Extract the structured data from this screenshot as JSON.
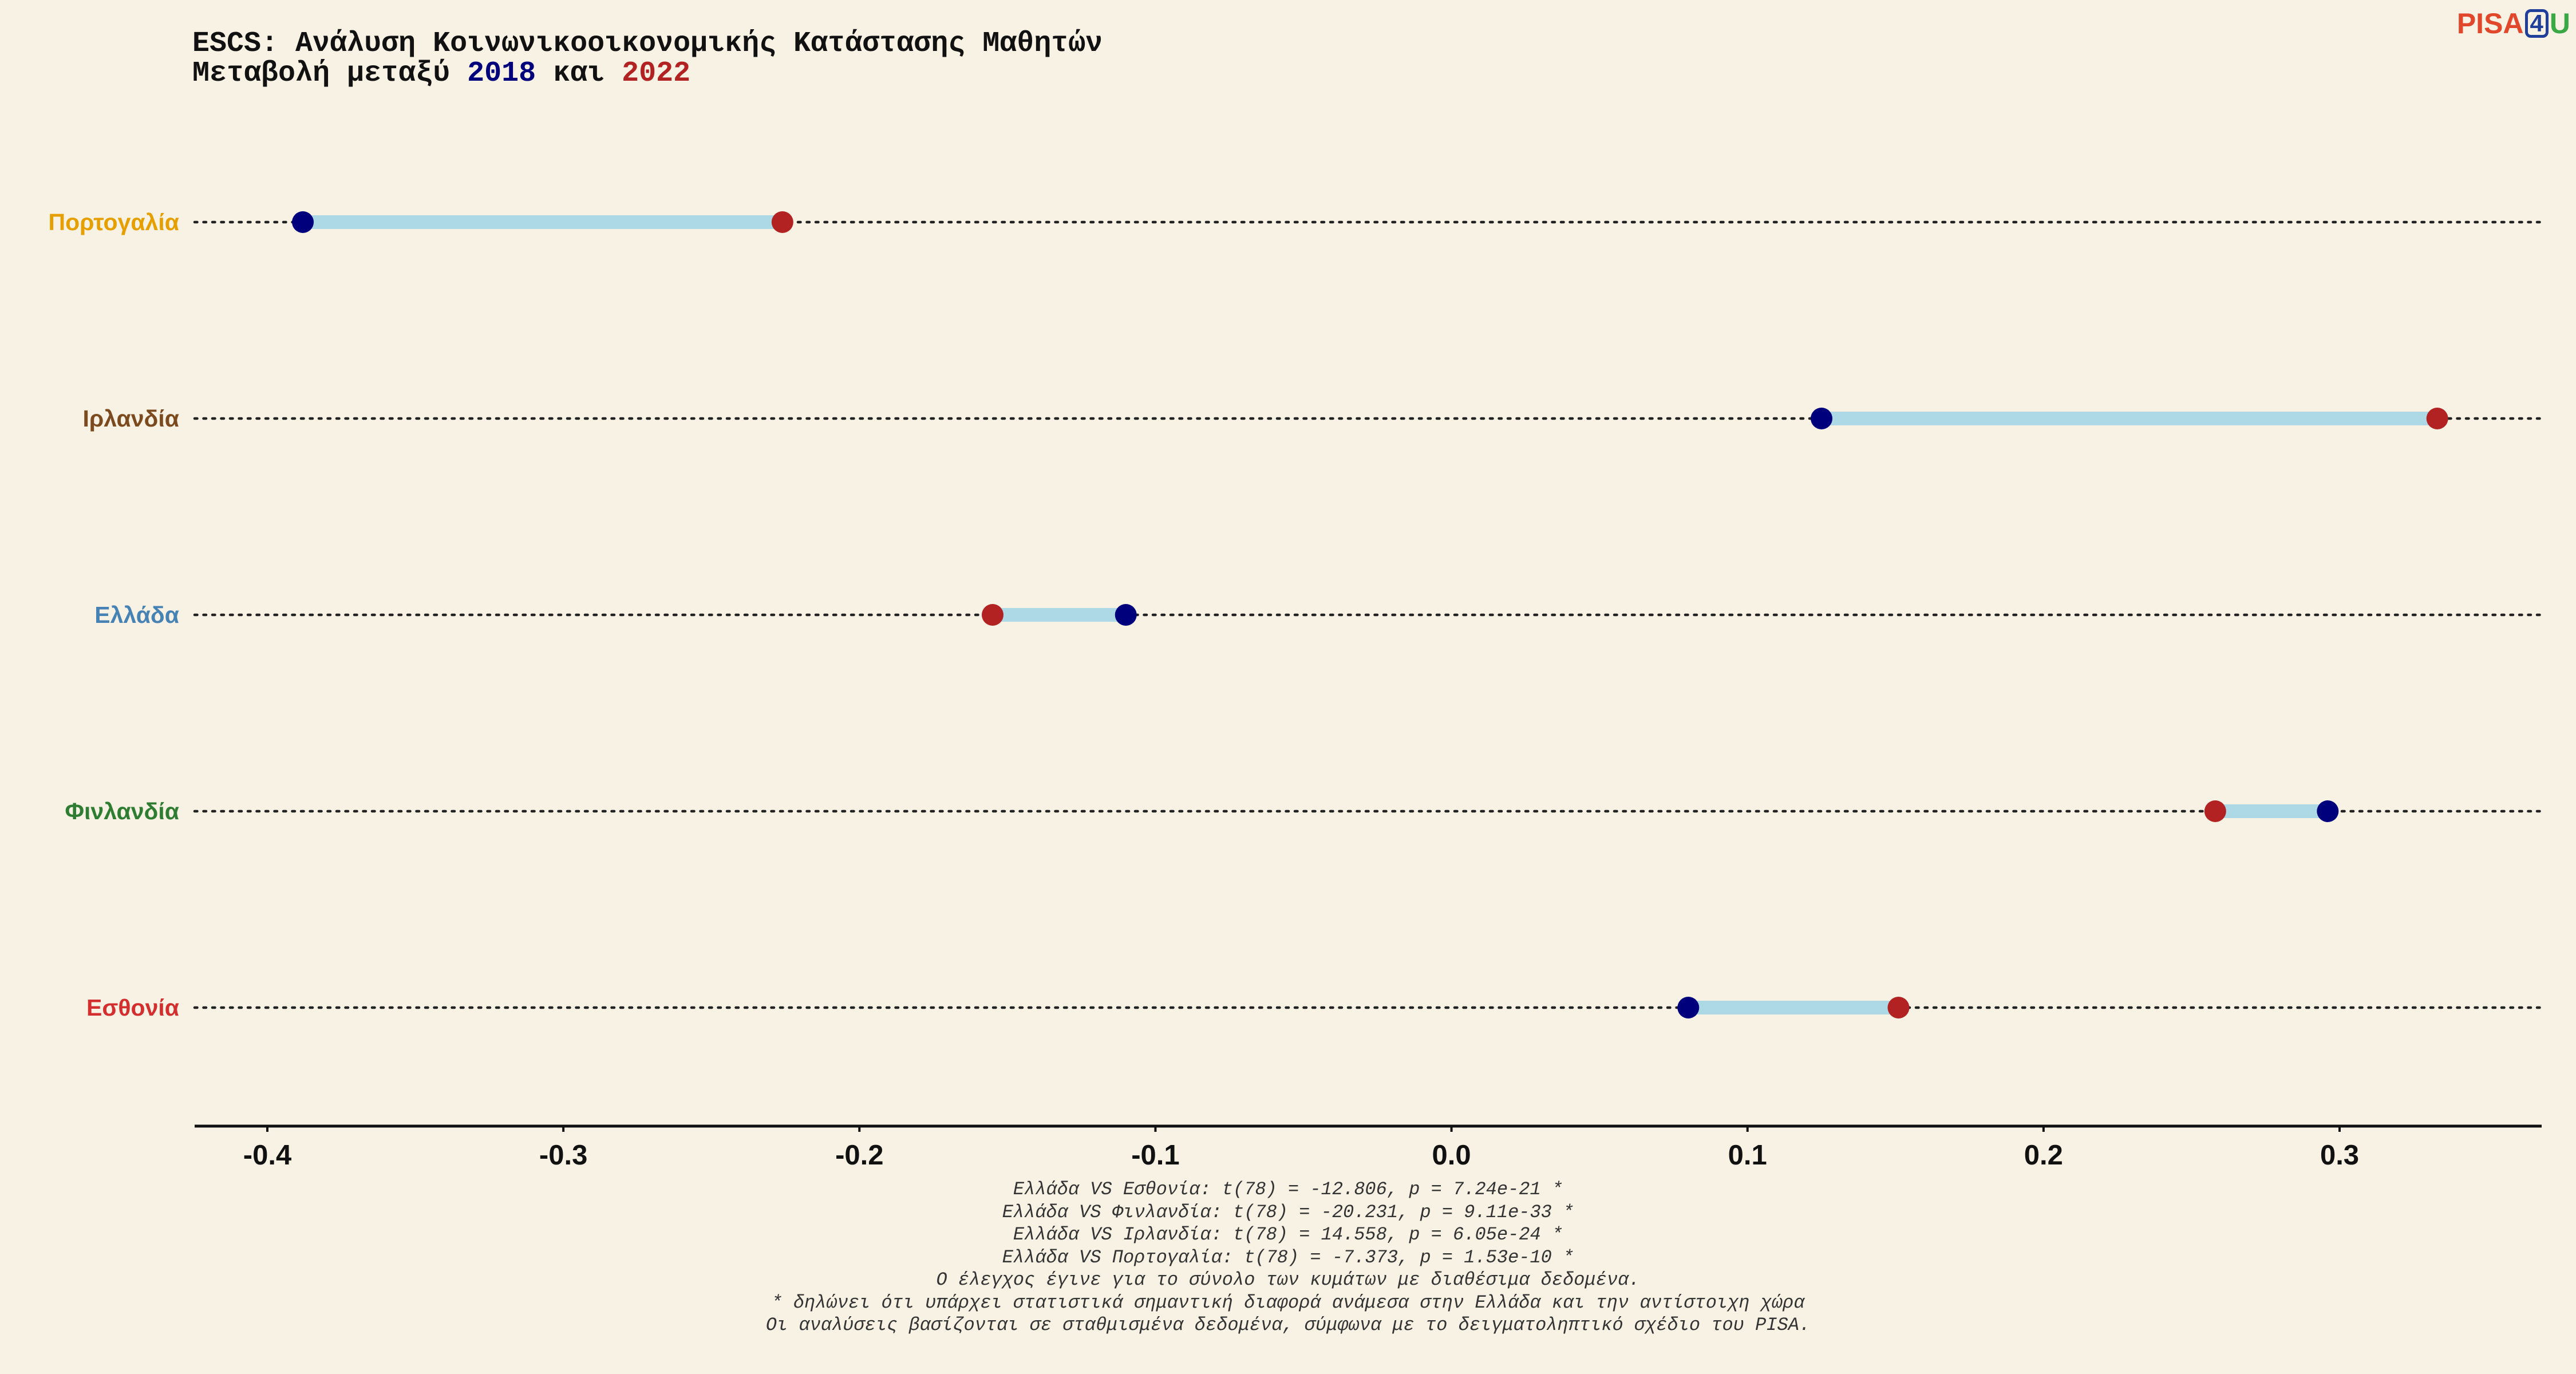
{
  "title": {
    "line1": "ESCS: Ανάλυση Κοινωνικοοικονομικής Κατάστασης Μαθητών",
    "line2_prefix": "Μεταβολή μεταξύ ",
    "year1": "2018",
    "line2_middle": " και ",
    "year2": "2022"
  },
  "logo": {
    "part1": "PISA",
    "part2": "4",
    "part3": "U"
  },
  "colors": {
    "background": "#f8f2e5",
    "year2018_dot": "#00007d",
    "year2022_dot": "#b22222",
    "segment": "#add8e6"
  },
  "chart_data": {
    "type": "dumbbell",
    "title": "ESCS: Ανάλυση Κοινωνικοοικονομικής Κατάστασης Μαθητών",
    "subtitle": "Μεταβολή μεταξύ 2018 και 2022",
    "xlabel": "",
    "ylabel": "",
    "xlim": [
      -0.43,
      0.362
    ],
    "xticks": [
      -0.4,
      -0.3,
      -0.2,
      -0.1,
      0.0,
      0.1,
      0.2,
      0.3
    ],
    "xtick_labels": [
      "-0.4",
      "-0.3",
      "-0.2",
      "-0.1",
      "0.0",
      "0.1",
      "0.2",
      "0.3"
    ],
    "grid": "dotted horizontal row guides",
    "categories": [
      "Πορτογαλία",
      "Ιρλανδία",
      "Ελλάδα",
      "Φινλανδία",
      "Εσθονία"
    ],
    "category_colors": [
      "#e69f00",
      "#7b4a1e",
      "#4682b4",
      "#2e7d32",
      "#d32f2f"
    ],
    "series": [
      {
        "name": "2018",
        "color": "#00007d",
        "values": [
          -0.388,
          0.125,
          -0.11,
          0.296,
          0.08
        ]
      },
      {
        "name": "2022",
        "color": "#b22222",
        "values": [
          -0.226,
          0.333,
          -0.155,
          0.258,
          0.151
        ]
      }
    ]
  },
  "footnotes": [
    "Ελλάδα VS Εσθονία: t(78) = -12.806, p = 7.24e-21 *",
    "Ελλάδα VS Φινλανδία: t(78) = -20.231, p = 9.11e-33 *",
    "Ελλάδα VS Ιρλανδία: t(78) = 14.558, p = 6.05e-24 *",
    "Ελλάδα VS Πορτογαλία: t(78) = -7.373, p = 1.53e-10 *",
    "Ο έλεγχος έγινε για το σύνολο των κυμάτων με διαθέσιμα δεδομένα.",
    "* δηλώνει ότι υπάρχει στατιστικά σημαντική διαφορά ανάμεσα στην Ελλάδα και την αντίστοιχη χώρα",
    "Οι αναλύσεις βασίζονται σε σταθμισμένα δεδομένα, σύμφωνα με το δειγματοληπτικό σχέδιο του PISA."
  ]
}
